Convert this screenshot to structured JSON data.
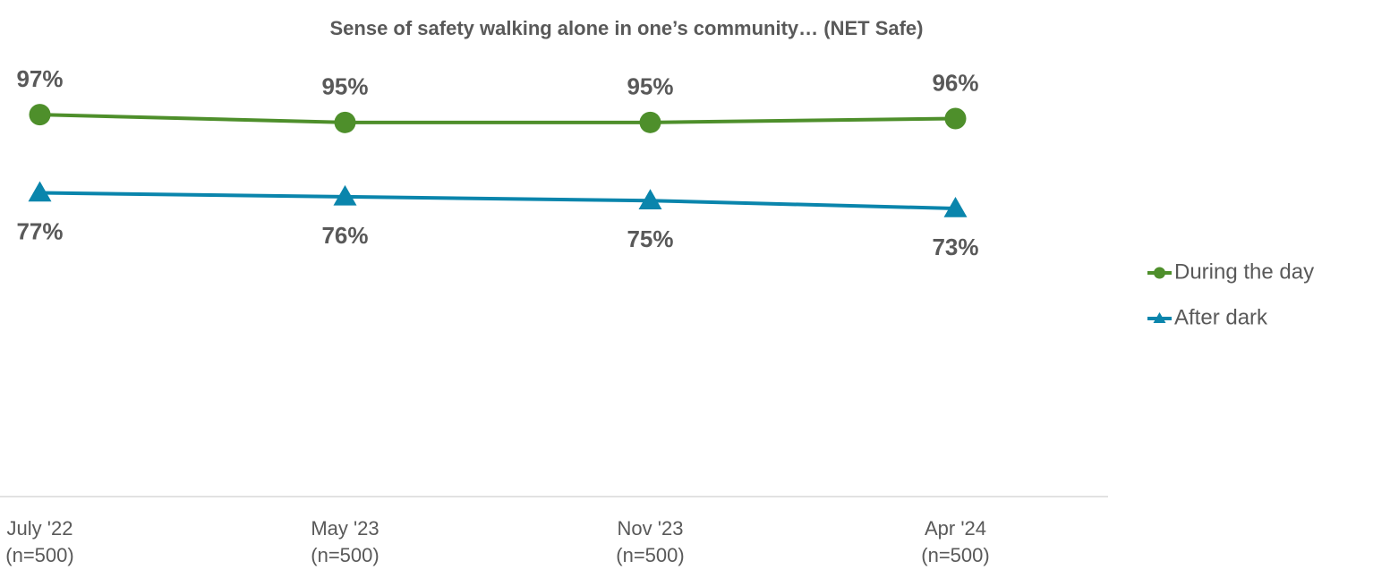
{
  "chart_data": {
    "type": "line",
    "title": "Sense of safety walking alone in one’s community… (NET Safe)",
    "categories": [
      [
        "July '22",
        "(n=500)"
      ],
      [
        "May '23",
        "(n=500)"
      ],
      [
        "Nov '23",
        "(n=500)"
      ],
      [
        "Apr '24",
        "(n=500)"
      ]
    ],
    "series": [
      {
        "name": "During the day",
        "color": "#4e8f2b",
        "marker": "circle",
        "label_side": "above",
        "values": [
          97,
          95,
          95,
          96
        ],
        "value_labels": [
          "97%",
          "95%",
          "95%",
          "96%"
        ]
      },
      {
        "name": "After dark",
        "color": "#0a85ac",
        "marker": "triangle",
        "label_side": "below",
        "values": [
          77,
          76,
          75,
          73
        ],
        "value_labels": [
          "77%",
          "76%",
          "75%",
          "73%"
        ]
      }
    ],
    "ylim": [
      0,
      100
    ],
    "grid": false,
    "legend": "right"
  }
}
